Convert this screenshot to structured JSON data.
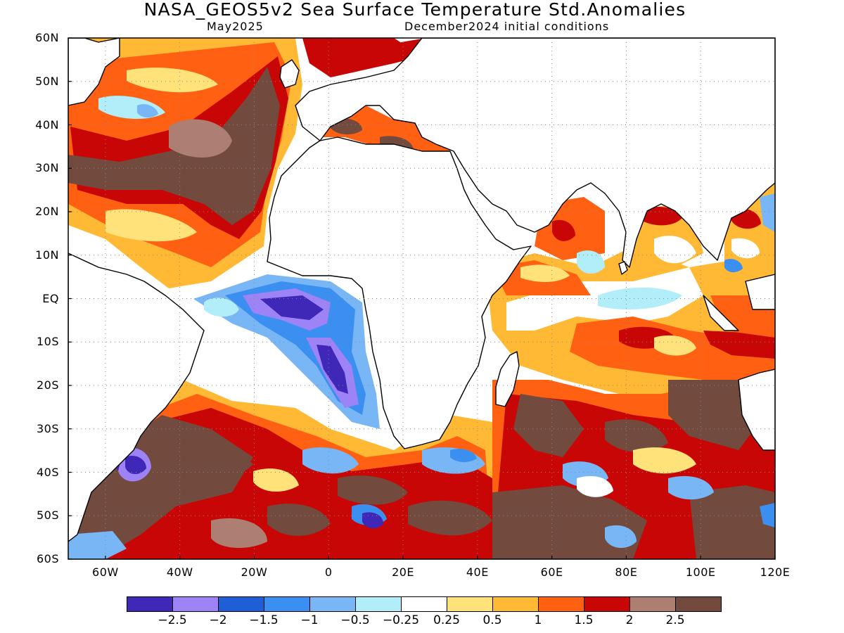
{
  "header": {
    "title": "NASA_GEOS5v2 Sea Surface Temperature Std.Anomalies",
    "valid_month": "May2025",
    "init": "December2024 initial conditions"
  },
  "axes": {
    "lat_labels": [
      "60N",
      "50N",
      "40N",
      "30N",
      "20N",
      "10N",
      "EQ",
      "10S",
      "20S",
      "30S",
      "40S",
      "50S",
      "60S"
    ],
    "lon_labels": [
      "60W",
      "40W",
      "20W",
      "0",
      "20E",
      "40E",
      "60E",
      "80E",
      "100E",
      "120E"
    ],
    "lon_range": [
      -70,
      120
    ],
    "lat_range": [
      -60,
      60
    ],
    "grid": "dotted"
  },
  "colorbar": {
    "colors": [
      "#3f27b8",
      "#9d83f5",
      "#1e5fd8",
      "#3b8ff0",
      "#78b6f5",
      "#b1eefa",
      "#ffffff",
      "#ffe27a",
      "#ffb935",
      "#ff6011",
      "#c90606",
      "#ad7e72",
      "#734a3e"
    ],
    "labels": [
      "−2.5",
      "−2",
      "−1.5",
      "−1",
      "−0.5",
      "−0.25",
      "0.25",
      "0.5",
      "1",
      "1.5",
      "2",
      "2.5"
    ]
  },
  "map_regions": {
    "ocean_color": "#ffffff",
    "land_color": "#ffffff",
    "coast_color": "#000000"
  }
}
